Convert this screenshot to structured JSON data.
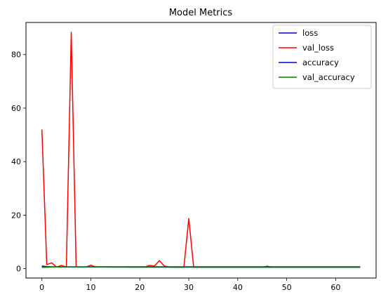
{
  "chart_data": {
    "type": "line",
    "title": "Model Metrics",
    "xlabel": "",
    "ylabel": "",
    "xlim": [
      -3.25,
      68.25
    ],
    "ylim": [
      -3.5,
      92
    ],
    "xticks": [
      0,
      10,
      20,
      30,
      40,
      50,
      60
    ],
    "yticks": [
      0,
      20,
      40,
      60,
      80
    ],
    "grid": false,
    "legend_position": "top-right",
    "x": [
      0,
      1,
      2,
      3,
      4,
      5,
      6,
      7,
      8,
      9,
      10,
      11,
      12,
      13,
      14,
      15,
      16,
      17,
      18,
      19,
      20,
      21,
      22,
      23,
      24,
      25,
      26,
      27,
      28,
      29,
      30,
      31,
      32,
      33,
      34,
      35,
      36,
      37,
      38,
      39,
      40,
      41,
      42,
      43,
      44,
      45,
      46,
      47,
      48,
      49,
      50,
      51,
      52,
      53,
      54,
      55,
      56,
      57,
      58,
      59,
      60,
      61,
      62,
      63,
      64,
      65
    ],
    "series": [
      {
        "name": "loss",
        "color": "#0000cc",
        "values": [
          1.0,
          0.75,
          0.7,
          0.7,
          0.68,
          0.68,
          0.66,
          0.66,
          0.65,
          0.64,
          0.64,
          0.63,
          0.62,
          0.62,
          0.6,
          0.6,
          0.6,
          0.6,
          0.58,
          0.58,
          0.58,
          0.58,
          0.58,
          0.57,
          0.57,
          0.57,
          0.56,
          0.56,
          0.56,
          0.56,
          0.56,
          0.56,
          0.55,
          0.55,
          0.55,
          0.55,
          0.55,
          0.55,
          0.55,
          0.55,
          0.55,
          0.55,
          0.55,
          0.55,
          0.55,
          0.55,
          0.9,
          0.55,
          0.55,
          0.55,
          0.55,
          0.55,
          0.55,
          0.55,
          0.55,
          0.55,
          0.55,
          0.55,
          0.55,
          0.55,
          0.55,
          0.55,
          0.55,
          0.55,
          0.55,
          0.55
        ]
      },
      {
        "name": "val_loss",
        "color": "#ff0000",
        "values": [
          52.0,
          1.5,
          2.2,
          0.6,
          1.2,
          0.6,
          88.3,
          0.6,
          0.6,
          0.6,
          1.3,
          0.6,
          0.6,
          0.6,
          0.6,
          0.6,
          0.6,
          0.6,
          0.6,
          0.6,
          0.6,
          0.6,
          1.2,
          1.0,
          3.0,
          1.0,
          0.6,
          0.5,
          0.5,
          0.5,
          18.7,
          0.5,
          0.5,
          0.5,
          0.5,
          0.5,
          0.5,
          0.5,
          0.5,
          0.5,
          0.5,
          0.5,
          0.5,
          0.5,
          0.5,
          0.5,
          0.5,
          0.5,
          0.5,
          0.5,
          0.5,
          0.5,
          0.5,
          0.5,
          0.5,
          0.5,
          0.5,
          0.5,
          0.5,
          0.5,
          0.5,
          0.5,
          0.5,
          0.5,
          0.5,
          0.5
        ]
      },
      {
        "name": "accuracy",
        "color": "#0000cc",
        "values": [
          0.5,
          0.55,
          0.6,
          0.62,
          0.62,
          0.63,
          0.63,
          0.64,
          0.64,
          0.65,
          0.65,
          0.65,
          0.66,
          0.66,
          0.66,
          0.66,
          0.67,
          0.67,
          0.67,
          0.67,
          0.67,
          0.67,
          0.68,
          0.68,
          0.68,
          0.68,
          0.68,
          0.68,
          0.68,
          0.68,
          0.68,
          0.68,
          0.68,
          0.68,
          0.68,
          0.68,
          0.68,
          0.68,
          0.68,
          0.68,
          0.68,
          0.68,
          0.68,
          0.68,
          0.68,
          0.68,
          0.68,
          0.68,
          0.68,
          0.68,
          0.68,
          0.68,
          0.68,
          0.68,
          0.68,
          0.68,
          0.68,
          0.68,
          0.68,
          0.68,
          0.68,
          0.68,
          0.68,
          0.68,
          0.68,
          0.68
        ]
      },
      {
        "name": "val_accuracy",
        "color": "#008000",
        "values": [
          0.55,
          0.6,
          0.62,
          0.63,
          0.64,
          0.65,
          0.66,
          0.67,
          0.68,
          0.68,
          0.69,
          0.69,
          0.7,
          0.7,
          0.7,
          0.7,
          0.7,
          0.7,
          0.7,
          0.7,
          0.7,
          0.7,
          0.7,
          0.7,
          0.7,
          0.7,
          0.7,
          0.7,
          0.7,
          0.7,
          0.7,
          0.7,
          0.7,
          0.7,
          0.7,
          0.7,
          0.7,
          0.7,
          0.7,
          0.7,
          0.7,
          0.7,
          0.7,
          0.7,
          0.7,
          0.7,
          0.7,
          0.7,
          0.7,
          0.7,
          0.7,
          0.7,
          0.7,
          0.7,
          0.7,
          0.7,
          0.7,
          0.7,
          0.7,
          0.7,
          0.7,
          0.7,
          0.7,
          0.7,
          0.7,
          0.7
        ]
      }
    ]
  }
}
